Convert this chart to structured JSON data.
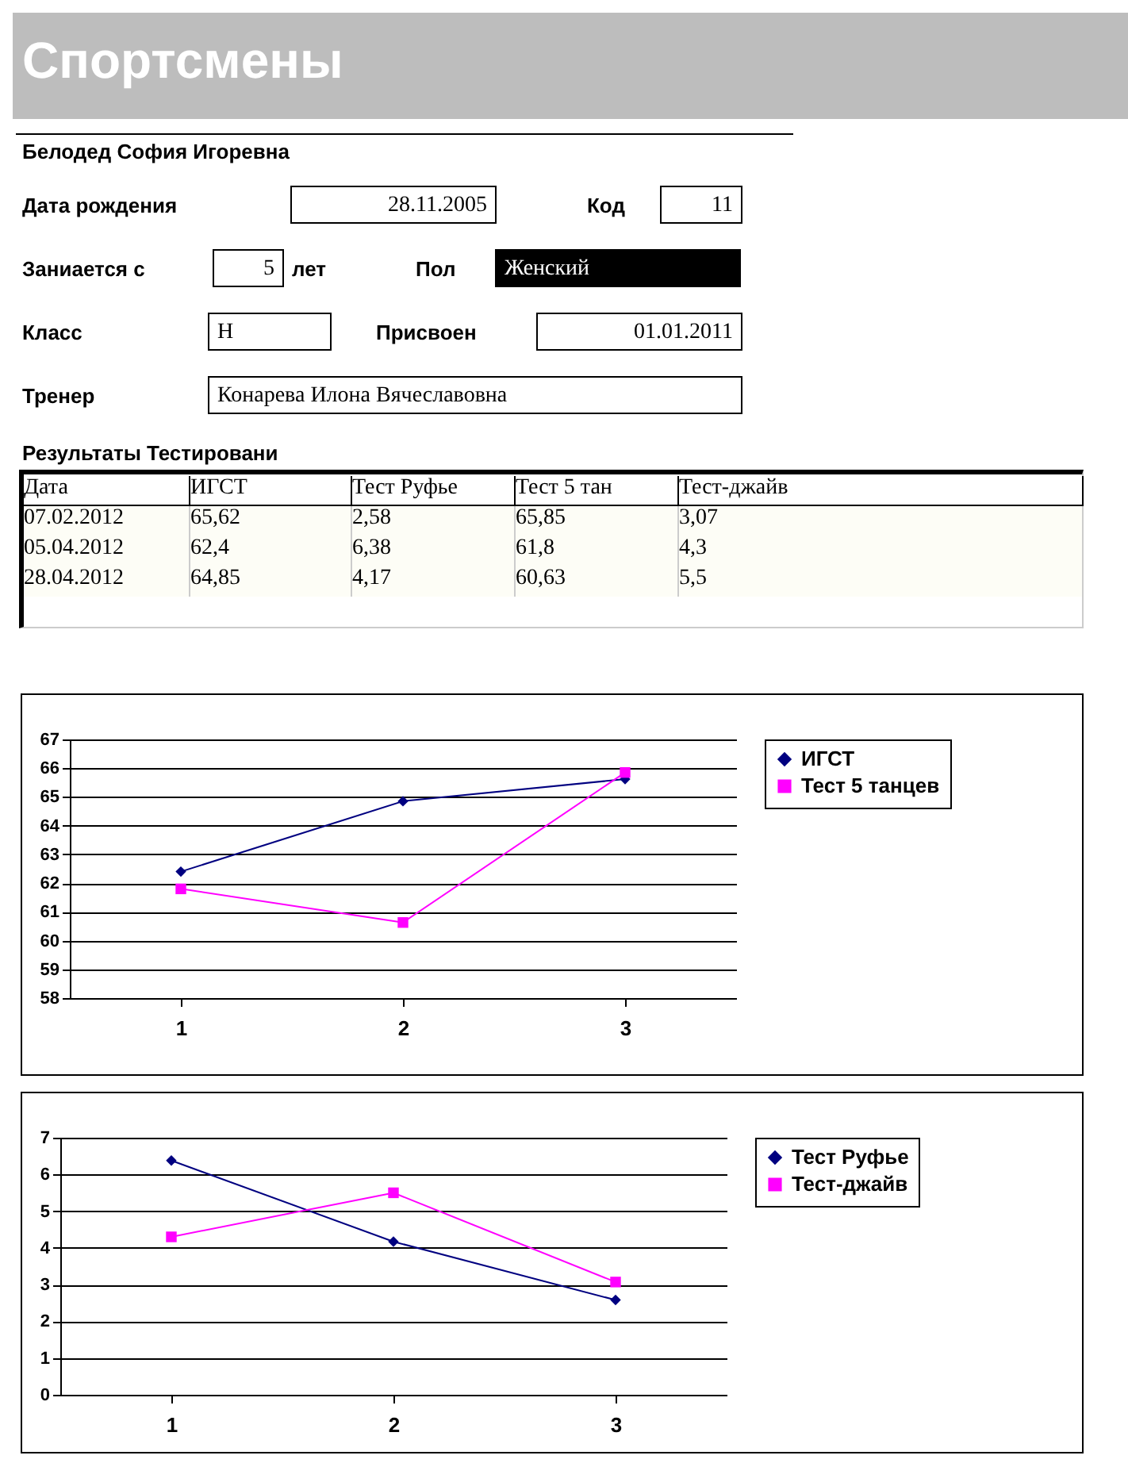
{
  "chart_data": [
    {
      "type": "other",
      "title": "Спортсмены",
      "annotations": [
        "Белодед София Игоревна",
        "Дата рождения",
        "28.11.2005",
        "Код",
        "11",
        "Заниается с",
        "5",
        "лет",
        "Пол",
        "Женский",
        "Класс",
        "Н",
        "Присвоен",
        "01.01.2011",
        "Тренер",
        "Конарева Илона Вячеславовна",
        "Результаты Тестировани",
        "Дата",
        "ИГСТ",
        "Тест Руфье",
        "Тест 5 тан",
        "Тест-джайв",
        "07.02.2012",
        "65,62",
        "2,58",
        "65,85",
        "3,07",
        "05.04.2012",
        "62,4",
        "6,38",
        "61,8",
        "4,3",
        "28.04.2012",
        "64,85",
        "4,17",
        "60,63",
        "5,5"
      ]
    },
    {
      "type": "line",
      "categories": [
        "1",
        "2",
        "3"
      ],
      "ylim": [
        58,
        67
      ],
      "yticks": [
        58,
        59,
        60,
        61,
        62,
        63,
        64,
        65,
        66,
        67
      ],
      "grid": "y",
      "legend": "right",
      "series": [
        {
          "name": "ИГСТ",
          "color": "#000080",
          "marker": "diamond",
          "values": [
            62.4,
            64.85,
            65.62
          ]
        },
        {
          "name": "Тест 5 танцев",
          "color": "#ff00ff",
          "marker": "square",
          "values": [
            61.8,
            60.63,
            65.85
          ]
        }
      ]
    },
    {
      "type": "line",
      "categories": [
        "1",
        "2",
        "3"
      ],
      "ylim": [
        0,
        7
      ],
      "yticks": [
        0,
        1,
        2,
        3,
        4,
        5,
        6,
        7
      ],
      "grid": "y",
      "legend": "right",
      "series": [
        {
          "name": "Тест Руфье",
          "color": "#000080",
          "marker": "diamond",
          "values": [
            6.38,
            4.17,
            2.58
          ]
        },
        {
          "name": "Тест-джайв",
          "color": "#ff00ff",
          "marker": "square",
          "values": [
            4.3,
            5.5,
            3.07
          ]
        }
      ]
    }
  ]
}
